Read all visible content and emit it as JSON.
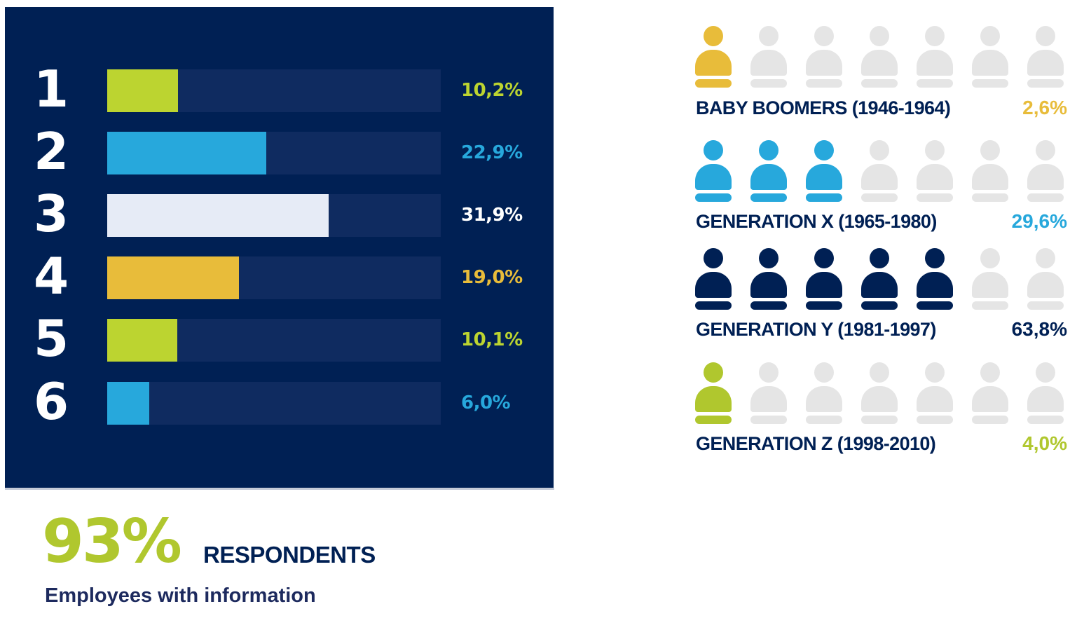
{
  "chart_data": [
    {
      "type": "bar",
      "orientation": "horizontal",
      "title": "",
      "categories": [
        "1",
        "2",
        "3",
        "4",
        "5",
        "6"
      ],
      "values": [
        10.2,
        22.9,
        31.9,
        19.0,
        10.1,
        6.0
      ],
      "value_labels": [
        "10,2%",
        "22,9%",
        "31,9%",
        "19,0%",
        "10,1%",
        "6,0%"
      ],
      "colors": [
        "#bcd430",
        "#27a8dc",
        "#e6ebf6",
        "#e8bc3a",
        "#bcd430",
        "#27a8dc"
      ],
      "label_colors": [
        "#bcd430",
        "#27a8dc",
        "#ffffff",
        "#e8bc3a",
        "#bcd430",
        "#27a8dc"
      ],
      "unit": "%",
      "xlabel": "",
      "ylabel": "",
      "grid": false
    },
    {
      "type": "pictogram",
      "icons_per_row": 7,
      "categories": [
        "BABY BOOMERS (1946-1964)",
        "GENERATION X (1965-1980)",
        "GENERATION Y (1981-1997)",
        "GENERATION Z (1998-2010)"
      ],
      "values": [
        2.6,
        29.6,
        63.8,
        4.0
      ],
      "value_labels": [
        "2,6%",
        "29,6%",
        "63,8%",
        "4,0%"
      ],
      "filled_icons": [
        1,
        3,
        5,
        1
      ],
      "colors": [
        "#e8bc3a",
        "#27a8dc",
        "#002054",
        "#b0c72e"
      ],
      "pct_colors": [
        "#e8bc3a",
        "#27a8dc",
        "#002054",
        "#b0c72e"
      ],
      "empty_color": "#e5e5e5"
    }
  ],
  "summary": {
    "big_percent": "93%",
    "respondents_label": "RESPONDENTS",
    "subtitle": "Employees with information"
  },
  "colors": {
    "panel_bg": "#002054",
    "track_bg": "#0f2b60",
    "accent_green": "#b0c72e",
    "navy": "#002054"
  }
}
